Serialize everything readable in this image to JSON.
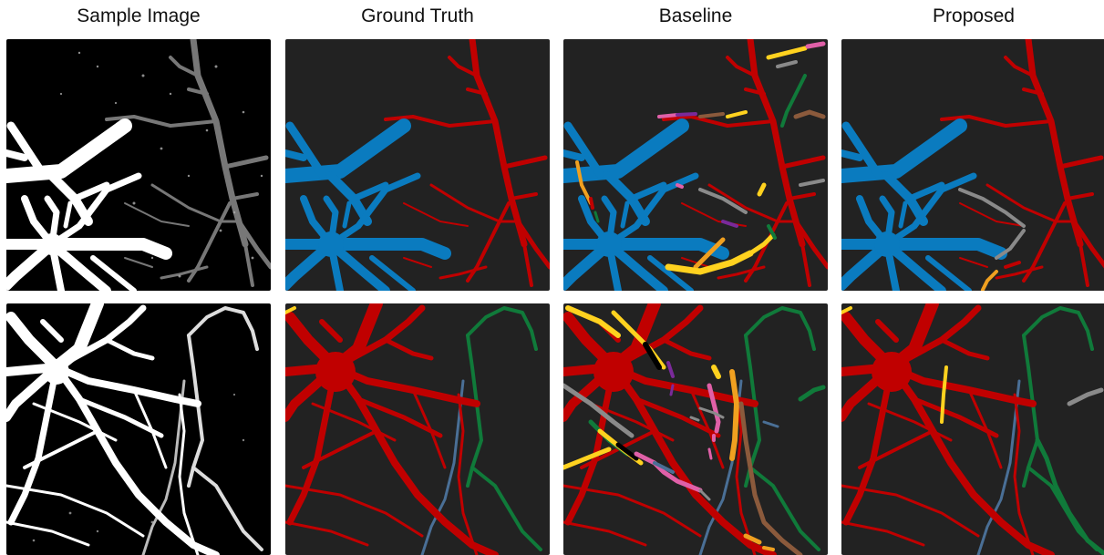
{
  "columns": [
    {
      "title": "Sample Image"
    },
    {
      "title": "Ground Truth"
    },
    {
      "title": "Baseline"
    },
    {
      "title": "Proposed"
    }
  ],
  "colors": {
    "sample_background": "#000000",
    "sample_neuron": "#ffffff",
    "segmentation_background": "#222222",
    "blue": "#0a7bbf",
    "red": "#c00000",
    "green": "#107a3a",
    "yellow": "#ffd21f",
    "orange": "#f0a020",
    "brown": "#8b5a3c",
    "pink": "#e060a8",
    "purple": "#7a2a9a",
    "gray": "#8a8a8a",
    "steel_blue": "#4a6f96"
  }
}
